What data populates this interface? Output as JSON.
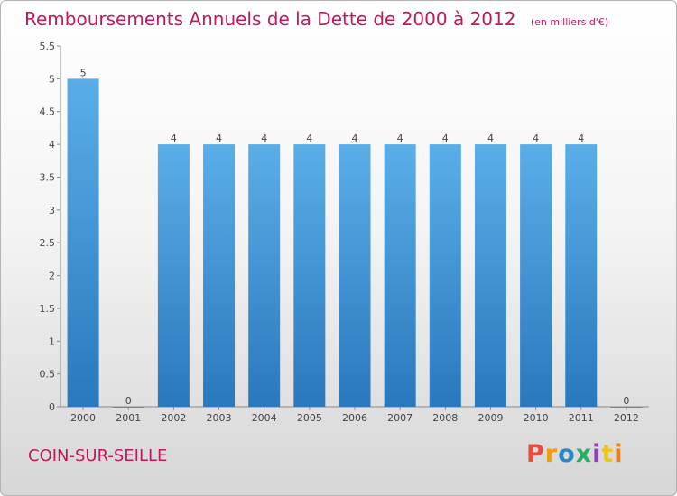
{
  "header": {
    "title": "Remboursements Annuels de la Dette de 2000 à 2012",
    "unit": "(en milliers d'€)"
  },
  "footer": {
    "commune": "COIN-SUR-SEILLE",
    "logo": [
      "P",
      "r",
      "o",
      "x",
      "i",
      "t",
      "i"
    ],
    "logo_colors": [
      "#e74c3c",
      "#f39c12",
      "#2e86c1",
      "#27ae60",
      "#8e44ad",
      "#f1c40f",
      "#e67e22"
    ]
  },
  "chart_data": {
    "type": "bar",
    "title": "Remboursements Annuels de la Dette de 2000 à 2012",
    "subtitle": "(en milliers d'€)",
    "categories": [
      "2000",
      "2001",
      "2002",
      "2003",
      "2004",
      "2005",
      "2006",
      "2007",
      "2008",
      "2009",
      "2010",
      "2011",
      "2012"
    ],
    "values": [
      5,
      0,
      4,
      4,
      4,
      4,
      4,
      4,
      4,
      4,
      4,
      4,
      0
    ],
    "data_labels": [
      "5",
      "0",
      "4",
      "4",
      "4",
      "4",
      "4",
      "4",
      "4",
      "4",
      "4",
      "4",
      "0"
    ],
    "ylim": [
      0,
      5.5
    ],
    "yticks": [
      0,
      0.5,
      1,
      1.5,
      2,
      2.5,
      3,
      3.5,
      4,
      4.5,
      5,
      5.5
    ],
    "ytick_labels": [
      "0",
      "0.5",
      "1",
      "1.5",
      "2",
      "2.5",
      "3",
      "3.5",
      "4",
      "4.5",
      "5",
      "5.5"
    ],
    "bar_color": "#3a8fd4",
    "grid": false
  }
}
